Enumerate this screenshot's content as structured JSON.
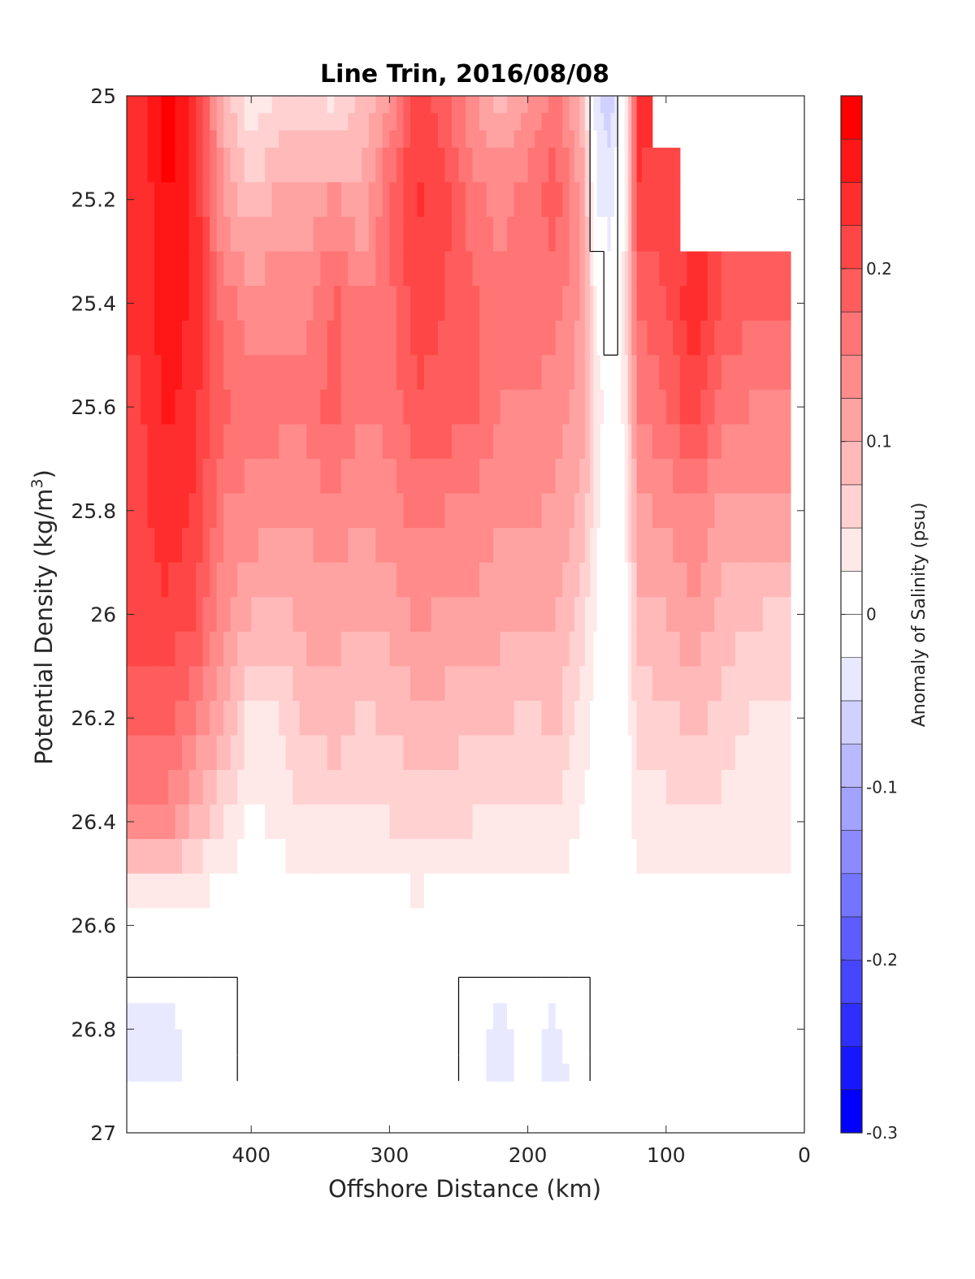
{
  "chart_data": {
    "type": "heatmap",
    "subtype": "filled-contour",
    "title": "Line Trin, 2016/08/08",
    "xlabel": "Offshore Distance (km)",
    "ylabel_main": "Potential Density (kg/m",
    "ylabel_sup": "3",
    "ylabel_close": ")",
    "xlim": [
      490,
      0
    ],
    "x_reversed": true,
    "ylim": [
      25,
      27
    ],
    "y_reversed": true,
    "x_ticks": [
      400,
      300,
      200,
      100,
      0
    ],
    "x_tick_labels": [
      "400",
      "300",
      "200",
      "100",
      "0"
    ],
    "y_ticks": [
      25,
      25.2,
      25.4,
      25.6,
      25.8,
      26,
      26.2,
      26.4,
      26.6,
      26.8,
      27
    ],
    "y_tick_labels": [
      "25",
      "25.2",
      "25.4",
      "25.6",
      "25.8",
      "26",
      "26.2",
      "26.4",
      "26.6",
      "26.8",
      "27"
    ],
    "colorbar": {
      "label": "Anomaly of Salinity (psu)",
      "range": [
        -0.3,
        0.3
      ],
      "step": 0.025,
      "ticks": [
        -0.3,
        -0.2,
        -0.1,
        0,
        0.1,
        0.2
      ],
      "tick_labels": [
        "-0.3",
        "-0.2",
        "-0.1",
        "0",
        "0.1",
        "0.2"
      ],
      "colormap": "blue-white-red",
      "low_color": "#0000ff",
      "mid_color": "#ffffff",
      "high_color": "#ff0000"
    },
    "zero_contour": true,
    "field": {
      "x": [
        480,
        460,
        440,
        420,
        400,
        380,
        360,
        340,
        320,
        300,
        280,
        260,
        240,
        220,
        200,
        180,
        160,
        150,
        140,
        130,
        120,
        100,
        80,
        60,
        40,
        20
      ],
      "y": [
        25.0,
        25.2,
        25.4,
        25.6,
        25.8,
        26.0,
        26.2,
        26.4,
        26.6,
        26.8,
        26.9
      ],
      "values": [
        [
          0.24,
          0.29,
          0.23,
          0.09,
          0.03,
          0.05,
          0.06,
          0.04,
          0.08,
          0.12,
          0.22,
          0.18,
          0.13,
          0.09,
          0.12,
          0.16,
          0.08,
          -0.05,
          -0.06,
          0.0,
          0.24,
          null,
          null,
          null,
          null,
          null
        ],
        [
          0.23,
          0.28,
          0.24,
          0.12,
          0.08,
          0.11,
          0.11,
          0.13,
          0.1,
          0.18,
          0.23,
          0.21,
          0.16,
          0.14,
          0.16,
          0.19,
          0.12,
          -0.03,
          -0.04,
          0.02,
          0.22,
          0.21,
          null,
          null,
          null,
          null
        ],
        [
          0.23,
          0.27,
          0.24,
          0.16,
          0.14,
          0.14,
          0.14,
          0.18,
          0.15,
          0.17,
          0.21,
          0.2,
          0.18,
          0.16,
          0.16,
          0.16,
          0.12,
          0.02,
          -0.01,
          0.04,
          0.18,
          0.2,
          0.24,
          0.2,
          0.18,
          0.19
        ],
        [
          0.22,
          0.26,
          0.23,
          0.18,
          0.16,
          0.16,
          0.16,
          0.19,
          0.15,
          0.16,
          0.2,
          0.19,
          0.18,
          0.15,
          0.15,
          0.14,
          0.11,
          0.04,
          0.0,
          0.03,
          0.15,
          0.17,
          0.22,
          0.16,
          0.15,
          0.14
        ],
        [
          0.22,
          0.24,
          0.22,
          0.15,
          0.14,
          0.13,
          0.13,
          0.14,
          0.13,
          0.14,
          0.16,
          0.15,
          0.14,
          0.13,
          0.13,
          0.12,
          0.09,
          0.03,
          0.0,
          0.02,
          0.12,
          0.13,
          0.15,
          0.12,
          0.12,
          0.12
        ],
        [
          0.21,
          0.22,
          0.2,
          0.13,
          0.1,
          0.09,
          0.11,
          0.11,
          0.1,
          0.11,
          0.13,
          0.12,
          0.12,
          0.11,
          0.1,
          0.1,
          0.06,
          0.02,
          0.0,
          0.01,
          0.09,
          0.1,
          0.12,
          0.09,
          0.08,
          0.07
        ],
        [
          0.19,
          0.19,
          0.15,
          0.1,
          0.04,
          0.05,
          0.08,
          0.09,
          0.07,
          0.08,
          0.09,
          0.09,
          0.08,
          0.08,
          0.07,
          0.08,
          0.04,
          0.01,
          0.0,
          0.01,
          0.06,
          0.07,
          0.08,
          0.07,
          0.05,
          0.05
        ],
        [
          0.13,
          0.13,
          0.09,
          0.05,
          0.02,
          0.03,
          0.05,
          0.05,
          0.05,
          0.05,
          0.06,
          0.06,
          0.05,
          0.05,
          0.05,
          0.05,
          0.02,
          0.01,
          0.0,
          0.0,
          0.04,
          0.04,
          0.05,
          0.04,
          0.03,
          0.03
        ],
        [
          0.0,
          0.0,
          0.0,
          0.0,
          0.0,
          0.01,
          0.01,
          0.01,
          0.0,
          0.0,
          0.01,
          0.0,
          0.0,
          0.0,
          0.0,
          0.0,
          0.0,
          0.0,
          0.0,
          0.0,
          0.01,
          0.01,
          0.01,
          0.01,
          0.02,
          0.02
        ],
        [
          -0.03,
          -0.03,
          -0.02,
          -0.01,
          0.0,
          0.0,
          0.0,
          0.0,
          0.0,
          0.0,
          0.0,
          0.0,
          -0.02,
          -0.03,
          -0.02,
          -0.03,
          -0.01,
          0.0,
          0.0,
          0.0,
          0.0,
          0.0,
          0.0,
          0.0,
          0.01,
          null
        ],
        [
          -0.03,
          -0.03,
          -0.02,
          -0.01,
          0.0,
          0.0,
          0.0,
          0.0,
          0.0,
          0.0,
          0.0,
          0.0,
          -0.02,
          -0.03,
          -0.02,
          -0.03,
          -0.02,
          0.0,
          0.0,
          0.0,
          0.0,
          0.0,
          0.0,
          0.0,
          null,
          null
        ]
      ]
    }
  }
}
